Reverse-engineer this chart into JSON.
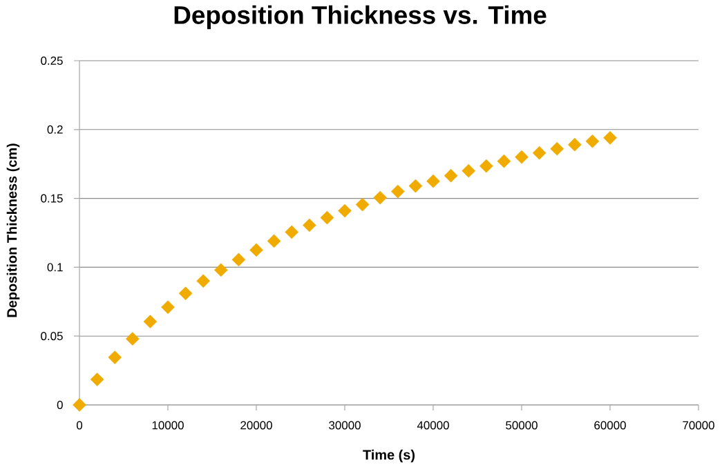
{
  "chart_data": {
    "type": "scatter",
    "title": "Deposition Thickness vs. Time",
    "xlabel": "Time (s)",
    "ylabel": "Deposition Thickness (cm)",
    "x": [
      0,
      2000,
      4000,
      6000,
      8000,
      10000,
      12000,
      14000,
      16000,
      18000,
      20000,
      22000,
      24000,
      26000,
      28000,
      30000,
      32000,
      34000,
      36000,
      38000,
      40000,
      42000,
      44000,
      46000,
      48000,
      50000,
      52000,
      54000,
      56000,
      58000,
      60000
    ],
    "values": [
      0,
      0.0185,
      0.0345,
      0.048,
      0.0605,
      0.071,
      0.081,
      0.09,
      0.098,
      0.1055,
      0.1125,
      0.119,
      0.1255,
      0.1305,
      0.136,
      0.141,
      0.1455,
      0.1505,
      0.155,
      0.159,
      0.1625,
      0.1665,
      0.17,
      0.1735,
      0.177,
      0.18,
      0.183,
      0.186,
      0.189,
      0.1915,
      0.194
    ],
    "color": "#f0ab00",
    "marker": "diamond",
    "grid": "y",
    "xlim": [
      0,
      70000
    ],
    "ylim": [
      0,
      0.25
    ],
    "xticks": [
      0,
      10000,
      20000,
      30000,
      40000,
      50000,
      60000,
      70000
    ],
    "yticks": [
      0,
      0.05,
      0.1,
      0.15,
      0.2,
      0.25
    ]
  }
}
